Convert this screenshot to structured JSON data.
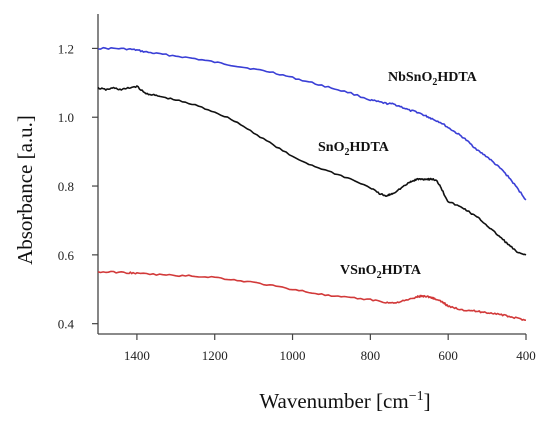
{
  "chart_data": {
    "type": "line",
    "title": "",
    "xlabel": "Wavenumber [cm",
    "xlabel_sup": "−1",
    "xlabel_end": "]",
    "ylabel": "Absorbance [a.u.]",
    "xlim": [
      1500,
      400
    ],
    "ylim": [
      0.37,
      1.3
    ],
    "x_ticks": [
      1400,
      1200,
      1000,
      800,
      600,
      400
    ],
    "y_ticks": [
      0.4,
      0.6,
      0.8,
      1.0,
      1.2
    ],
    "x_tick_labels": [
      "1400",
      "1200",
      "1000",
      "800",
      "600",
      "400"
    ],
    "y_tick_labels": [
      "0.4",
      "0.6",
      "0.8",
      "1.0",
      "1.2"
    ],
    "grid": false,
    "series": [
      {
        "name": "NbSnO2HDTA",
        "label_parts": [
          "NbSnO",
          "2",
          "HDTA"
        ],
        "color": "#3a3fd6",
        "x": [
          1500,
          1460,
          1420,
          1400,
          1380,
          1350,
          1300,
          1250,
          1200,
          1150,
          1100,
          1050,
          1000,
          950,
          900,
          850,
          800,
          780,
          760,
          740,
          720,
          700,
          680,
          660,
          650,
          640,
          620,
          600,
          580,
          560,
          540,
          520,
          500,
          480,
          460,
          440,
          420,
          400
        ],
        "y": [
          1.2,
          1.2,
          1.198,
          1.195,
          1.19,
          1.185,
          1.178,
          1.17,
          1.16,
          1.15,
          1.14,
          1.13,
          1.115,
          1.1,
          1.085,
          1.07,
          1.05,
          1.045,
          1.04,
          1.038,
          1.03,
          1.02,
          1.015,
          1.005,
          1.0,
          0.995,
          0.985,
          0.97,
          0.955,
          0.94,
          0.92,
          0.9,
          0.885,
          0.865,
          0.845,
          0.82,
          0.79,
          0.76
        ]
      },
      {
        "name": "SnO2HDTA",
        "label_parts": [
          "SnO",
          "2",
          "HDTA"
        ],
        "color": "#111111",
        "x": [
          1500,
          1480,
          1460,
          1440,
          1420,
          1400,
          1380,
          1360,
          1340,
          1300,
          1250,
          1200,
          1150,
          1100,
          1050,
          1000,
          950,
          900,
          850,
          800,
          780,
          760,
          750,
          740,
          720,
          700,
          690,
          680,
          670,
          660,
          650,
          640,
          630,
          620,
          610,
          600,
          580,
          560,
          540,
          520,
          500,
          480,
          460,
          440,
          420,
          400
        ],
        "y": [
          1.085,
          1.08,
          1.085,
          1.08,
          1.085,
          1.09,
          1.07,
          1.065,
          1.06,
          1.05,
          1.035,
          1.015,
          0.99,
          0.955,
          0.92,
          0.885,
          0.86,
          0.84,
          0.82,
          0.795,
          0.78,
          0.77,
          0.775,
          0.78,
          0.795,
          0.81,
          0.815,
          0.82,
          0.82,
          0.82,
          0.82,
          0.82,
          0.815,
          0.8,
          0.775,
          0.755,
          0.745,
          0.735,
          0.72,
          0.705,
          0.685,
          0.665,
          0.645,
          0.625,
          0.605,
          0.6
        ]
      },
      {
        "name": "VSnO2HDTA",
        "label_parts": [
          "VSnO",
          "2",
          "HDTA"
        ],
        "color": "#d23a3a",
        "x": [
          1500,
          1460,
          1420,
          1400,
          1350,
          1300,
          1250,
          1200,
          1150,
          1100,
          1050,
          1000,
          950,
          900,
          850,
          800,
          760,
          740,
          720,
          700,
          680,
          670,
          660,
          650,
          640,
          630,
          620,
          610,
          600,
          580,
          560,
          540,
          520,
          500,
          480,
          460,
          440,
          420,
          400
        ],
        "y": [
          0.55,
          0.55,
          0.548,
          0.546,
          0.543,
          0.54,
          0.538,
          0.535,
          0.527,
          0.52,
          0.51,
          0.5,
          0.49,
          0.48,
          0.475,
          0.47,
          0.462,
          0.46,
          0.465,
          0.47,
          0.478,
          0.48,
          0.48,
          0.478,
          0.475,
          0.47,
          0.465,
          0.46,
          0.45,
          0.445,
          0.44,
          0.438,
          0.435,
          0.432,
          0.43,
          0.425,
          0.42,
          0.415,
          0.41
        ]
      }
    ]
  }
}
